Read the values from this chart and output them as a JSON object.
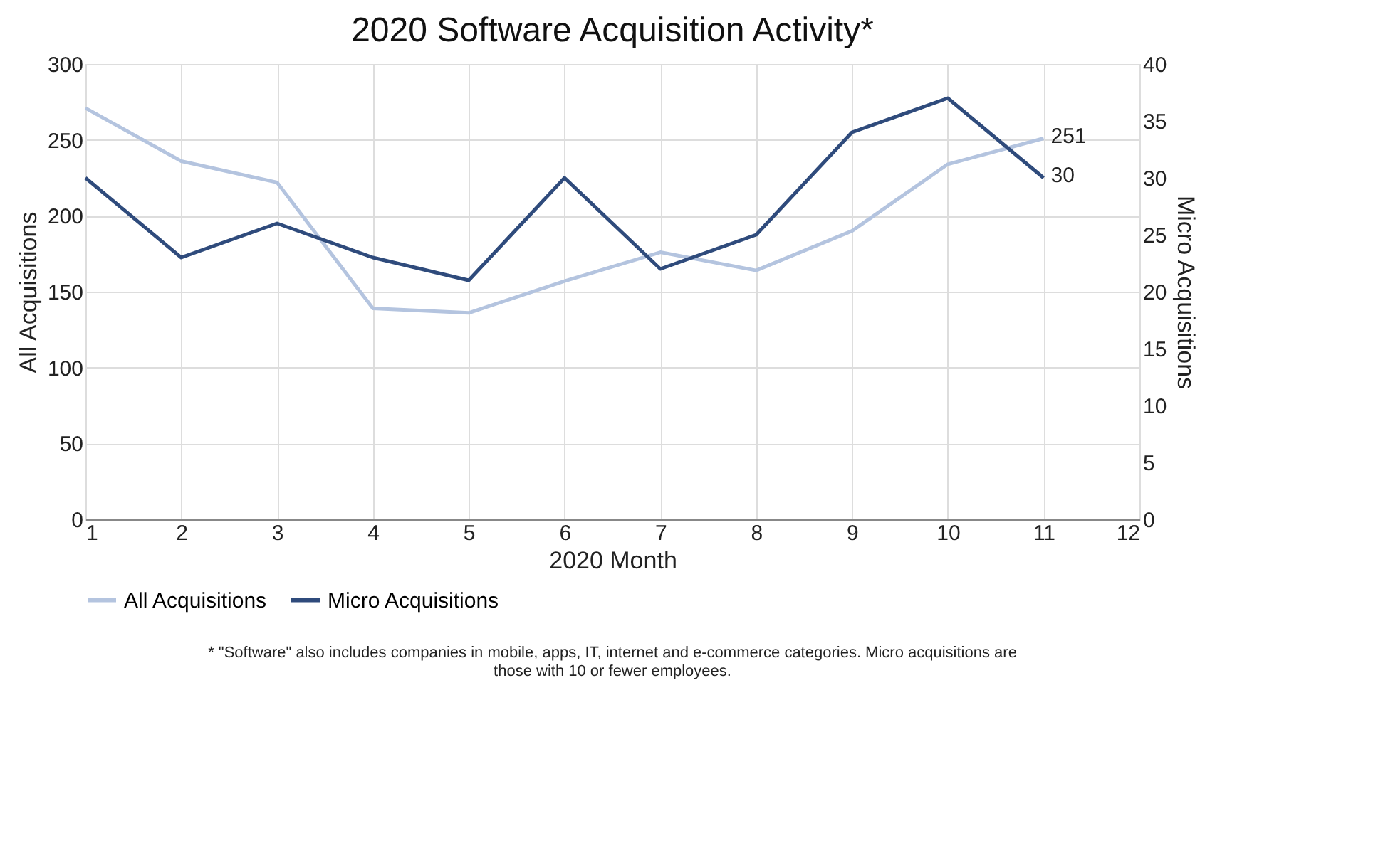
{
  "chart_data": {
    "type": "line",
    "title": "2020 Software Acquisition Activity*",
    "xlabel": "2020 Month",
    "ylabel": "All Acquisitions",
    "y2label": "Micro Acquisitions",
    "x": [
      1,
      2,
      3,
      4,
      5,
      6,
      7,
      8,
      9,
      10,
      11
    ],
    "series": [
      {
        "name": "All Acquisitions",
        "color": "#b4c4df",
        "values": [
          271,
          236,
          222,
          139,
          136,
          157,
          176,
          164,
          190,
          234,
          251
        ],
        "value_labels": [
          null,
          null,
          null,
          null,
          null,
          null,
          null,
          null,
          null,
          null,
          "251"
        ]
      },
      {
        "name": "Micro Acquisitions",
        "color": "#2f4b7c",
        "axis": "y2",
        "values": [
          30,
          23,
          26,
          23,
          21,
          30,
          22,
          25,
          34,
          37,
          30
        ],
        "value_labels": [
          null,
          null,
          null,
          null,
          null,
          null,
          null,
          null,
          null,
          null,
          "30"
        ]
      }
    ],
    "xlim": [
      1,
      12
    ],
    "xticks": [
      1,
      2,
      3,
      4,
      5,
      6,
      7,
      8,
      9,
      10,
      11,
      12
    ],
    "ylim": [
      0,
      300
    ],
    "yticks": [
      0,
      50,
      100,
      150,
      200,
      250,
      300
    ],
    "y2lim": [
      0,
      40
    ],
    "y2ticks": [
      0,
      5,
      10,
      15,
      20,
      25,
      30,
      35,
      40
    ],
    "grid": true,
    "legend": "bottom",
    "marker": "none",
    "line_style": "solid",
    "annotations": [
      "* \"Software\" also includes companies in mobile, apps, IT, internet and e-commerce categories. Micro acquisitions are those with 10 or fewer employees."
    ]
  }
}
